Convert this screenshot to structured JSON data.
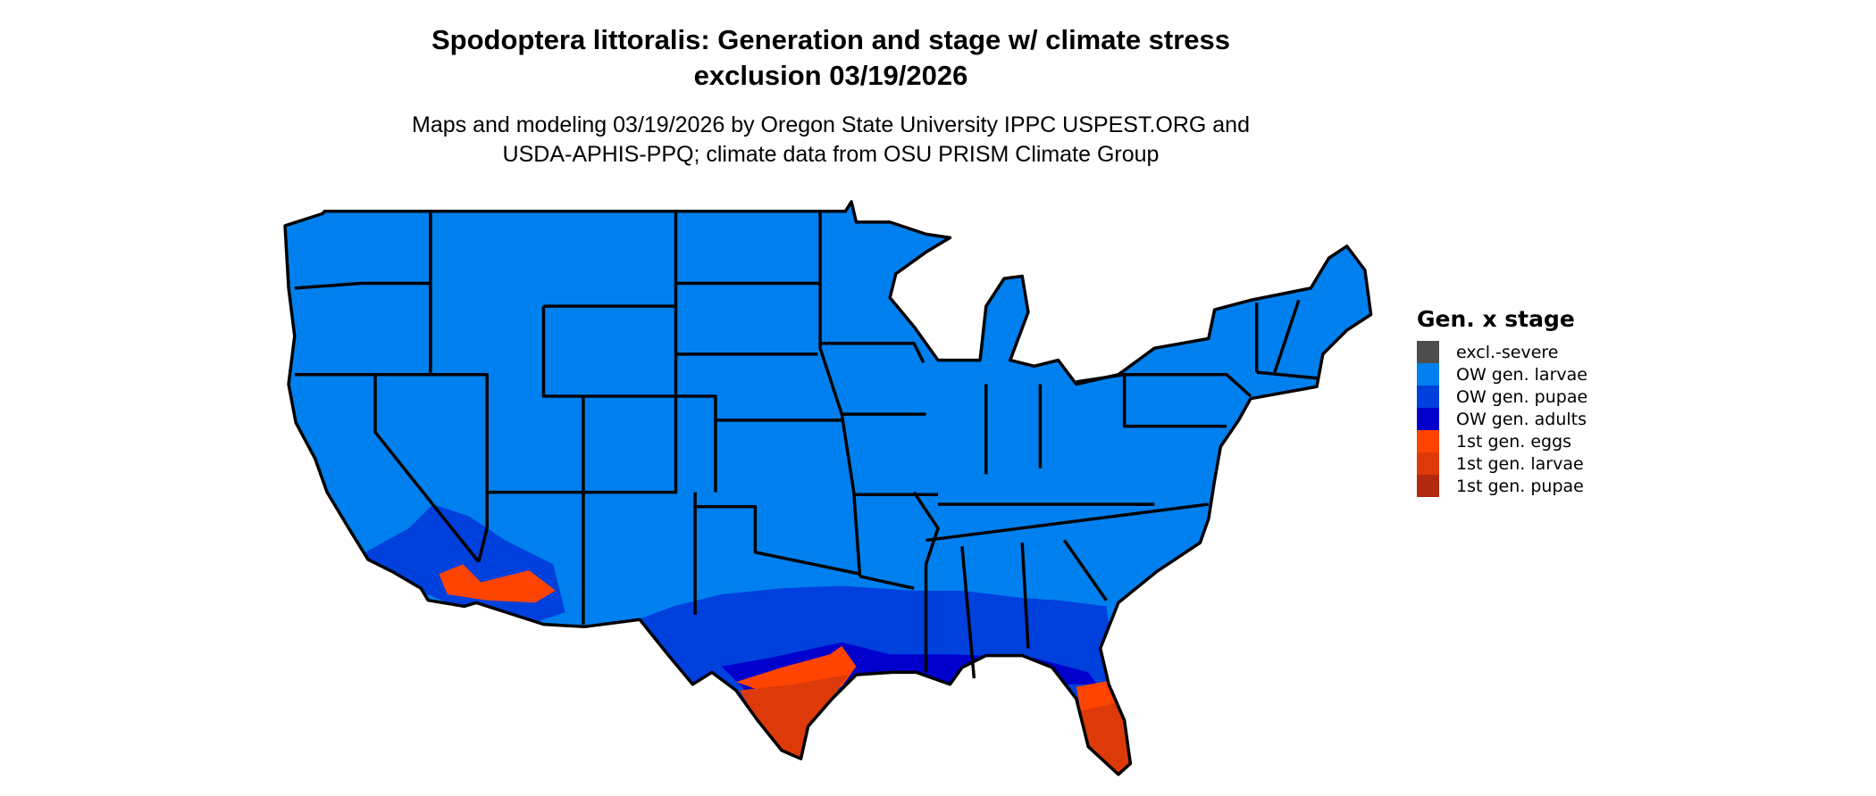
{
  "title": {
    "line1": "Spodoptera littoralis: Generation and stage w/ climate stress",
    "line2": "exclusion 03/19/2026"
  },
  "subtitle": {
    "line1": "Maps and modeling 03/19/2026 by Oregon State University IPPC USPEST.ORG and",
    "line2": "USDA-APHIS-PPQ; climate data from OSU PRISM Climate Group"
  },
  "legend": {
    "title": "Gen. x stage",
    "items": [
      {
        "label": "excl.-severe",
        "color": "#4d4d4d"
      },
      {
        "label": "OW gen. larvae",
        "color": "#0080ee"
      },
      {
        "label": "OW gen. pupae",
        "color": "#0040dd"
      },
      {
        "label": "OW gen. adults",
        "color": "#0000cc"
      },
      {
        "label": "1st gen. eggs",
        "color": "#ff4400"
      },
      {
        "label": "1st gen. larvae",
        "color": "#dd3a0a"
      },
      {
        "label": "1st gen. pupae",
        "color": "#b02a10"
      }
    ]
  },
  "map": {
    "boundary_color": "#000000"
  }
}
